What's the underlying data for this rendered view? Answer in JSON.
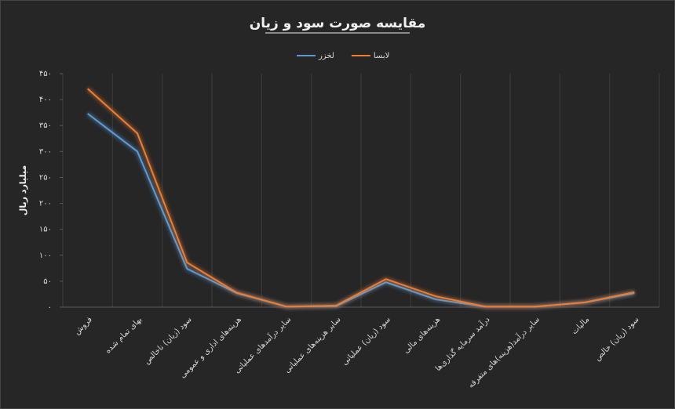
{
  "chart_data": {
    "type": "line",
    "title": "مقایسه صورت سود و زیان",
    "y_label": "میلیارد ریال",
    "categories": [
      "فروش",
      "بهای تمام شده",
      "سود (زیان) ناخالص",
      "هزینه‌های اداری و عمومی",
      "سایر درآمدهای عملیاتی",
      "سایر هزینه‌های عملیاتی",
      "سود (زیان) عملیاتی",
      "هزینه‌های مالی",
      "درآمد سرمایه گذاری‌ها",
      "سایر درآمد(هزینه)های متفرقه",
      "مالیات",
      "سود (زیان) خالص"
    ],
    "series": [
      {
        "name": "لخزر",
        "color": "#5b9bd5",
        "values": [
          373,
          300,
          74,
          27,
          1,
          2,
          48,
          15,
          1,
          1,
          9,
          27
        ]
      },
      {
        "name": "لابسا",
        "color": "#ed7d31",
        "values": [
          421,
          335,
          86,
          28,
          1,
          3,
          54,
          21,
          1,
          1,
          9,
          29
        ]
      }
    ],
    "ylim": [
      0,
      450
    ],
    "yticks": [
      {
        "value": 0,
        "label": "۰"
      },
      {
        "value": 50,
        "label": "۵۰"
      },
      {
        "value": 100,
        "label": "۱۰۰"
      },
      {
        "value": 150,
        "label": "۱۵۰"
      },
      {
        "value": 200,
        "label": "۲۰۰"
      },
      {
        "value": 250,
        "label": "۲۵۰"
      },
      {
        "value": 300,
        "label": "۳۰۰"
      },
      {
        "value": 350,
        "label": "۳۵۰"
      },
      {
        "value": 400,
        "label": "۴۰۰"
      },
      {
        "value": 450,
        "label": "۴۵۰"
      }
    ],
    "legend": "top"
  }
}
